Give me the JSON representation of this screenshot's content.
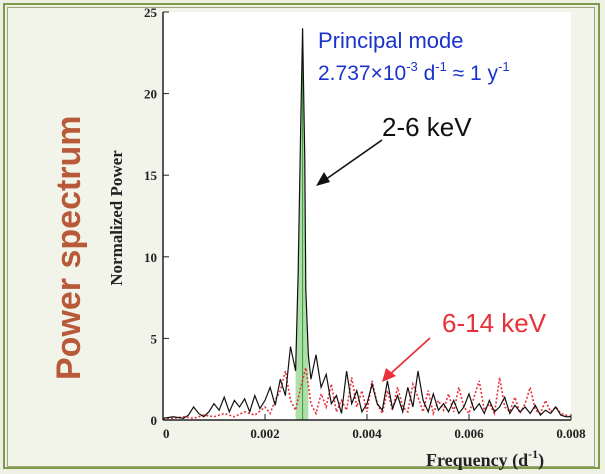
{
  "page": {
    "side_title": "Power spectrum",
    "colors": {
      "background": "#eef0e4",
      "frame": "#7f9a4a",
      "side_title": "#b85a3a",
      "blue_text": "#1a33cc",
      "red": "#e8313a",
      "green_fill": "#9fd99a"
    }
  },
  "chart_data": {
    "type": "line",
    "xlabel": "Frequency (d",
    "xlabel_sup": "-1",
    "xlabel_close": ")",
    "ylabel": "Normalized Power",
    "xlim": [
      0,
      0.008
    ],
    "ylim": [
      0,
      25
    ],
    "x_ticks": [
      "0",
      "0.002",
      "0.004",
      "0.006",
      "0.008"
    ],
    "x_tick_values": [
      0,
      0.002,
      0.004,
      0.006,
      0.008
    ],
    "y_ticks": [
      "0",
      "5",
      "10",
      "15",
      "20",
      "25"
    ],
    "y_tick_values": [
      0,
      5,
      10,
      15,
      20,
      25
    ],
    "annotations": {
      "principal_title": "Principal mode",
      "principal_base": "2.737×10",
      "principal_exp1": "-3",
      "principal_mid": " d",
      "principal_exp2": "-1",
      "principal_tail": " ≈ 1 y",
      "principal_exp3": "-1",
      "label_low": "2-6 keV",
      "label_high": "6-14 keV"
    },
    "principal_peak": {
      "x": 0.002737,
      "y": 24
    },
    "series": [
      {
        "name": "2-6 keV",
        "style": "solid",
        "color": "#111111",
        "x": [
          0,
          0.0002,
          0.0004,
          0.0005,
          0.0006,
          0.0007,
          0.0008,
          0.0009,
          0.001,
          0.0011,
          0.0012,
          0.0013,
          0.0014,
          0.0015,
          0.0016,
          0.0017,
          0.0018,
          0.0019,
          0.002,
          0.0021,
          0.0022,
          0.0023,
          0.0024,
          0.0025,
          0.0026,
          0.00265,
          0.0027,
          0.002737,
          0.00278,
          0.0028,
          0.00285,
          0.0029,
          0.003,
          0.0031,
          0.0032,
          0.0033,
          0.0034,
          0.0035,
          0.0036,
          0.0037,
          0.0038,
          0.0039,
          0.004,
          0.0041,
          0.0042,
          0.0043,
          0.0044,
          0.0045,
          0.0046,
          0.0047,
          0.0048,
          0.0049,
          0.005,
          0.0051,
          0.0052,
          0.0053,
          0.0054,
          0.0055,
          0.0056,
          0.0057,
          0.0058,
          0.0059,
          0.006,
          0.0061,
          0.0062,
          0.0063,
          0.0064,
          0.0065,
          0.0066,
          0.0067,
          0.0068,
          0.0069,
          0.007,
          0.0071,
          0.0072,
          0.0073,
          0.0074,
          0.0075,
          0.0076,
          0.0077,
          0.0078,
          0.0079,
          0.008
        ],
        "y": [
          0.1,
          0.2,
          0.1,
          0.3,
          0.8,
          0.4,
          0.2,
          0.5,
          1.0,
          0.6,
          1.4,
          0.5,
          1.2,
          0.8,
          1.3,
          0.5,
          1.5,
          0.7,
          1.2,
          2.0,
          0.9,
          2.5,
          1.5,
          4.5,
          3.0,
          9.0,
          18.0,
          24.0,
          16.0,
          8.0,
          4.0,
          2.5,
          4.0,
          2.0,
          2.8,
          1.0,
          1.5,
          0.4,
          3.0,
          1.0,
          1.8,
          0.5,
          1.0,
          2.2,
          1.0,
          0.6,
          2.4,
          0.7,
          1.5,
          0.5,
          2.0,
          0.8,
          3.0,
          1.2,
          0.5,
          1.6,
          0.6,
          1.0,
          0.5,
          1.2,
          0.4,
          0.8,
          1.6,
          0.6,
          1.0,
          0.4,
          1.2,
          0.5,
          0.8,
          1.4,
          0.4,
          0.9,
          0.5,
          0.8,
          0.4,
          0.9,
          0.3,
          0.6,
          0.4,
          0.8,
          0.3,
          0.2,
          0.2
        ]
      },
      {
        "name": "6-14 keV",
        "style": "dotted",
        "color": "#e8313a",
        "x": [
          0,
          0.0002,
          0.0004,
          0.0006,
          0.0008,
          0.001,
          0.0012,
          0.0014,
          0.0016,
          0.0018,
          0.002,
          0.0021,
          0.0022,
          0.0023,
          0.0024,
          0.0025,
          0.0026,
          0.0027,
          0.0028,
          0.0029,
          0.003,
          0.0031,
          0.0032,
          0.0033,
          0.0034,
          0.0035,
          0.0036,
          0.0037,
          0.0038,
          0.0039,
          0.004,
          0.0041,
          0.0042,
          0.0043,
          0.0044,
          0.0045,
          0.0046,
          0.0047,
          0.0048,
          0.0049,
          0.005,
          0.0051,
          0.0052,
          0.0053,
          0.0054,
          0.0055,
          0.0056,
          0.0057,
          0.0058,
          0.0059,
          0.006,
          0.0061,
          0.0062,
          0.0063,
          0.0064,
          0.0065,
          0.0066,
          0.0067,
          0.0068,
          0.0069,
          0.007,
          0.0071,
          0.0072,
          0.0073,
          0.0074,
          0.0075,
          0.0076,
          0.0077,
          0.0078,
          0.0079,
          0.008
        ],
        "y": [
          0.1,
          0.1,
          0.2,
          0.1,
          0.3,
          0.2,
          0.4,
          0.2,
          0.5,
          0.3,
          0.8,
          0.4,
          1.2,
          1.8,
          3.0,
          1.2,
          0.6,
          2.0,
          3.2,
          1.0,
          0.4,
          1.6,
          0.8,
          2.2,
          0.5,
          1.2,
          0.6,
          2.6,
          0.8,
          1.8,
          0.5,
          2.4,
          1.0,
          0.4,
          1.8,
          0.6,
          2.0,
          0.8,
          0.5,
          2.2,
          1.4,
          0.5,
          1.8,
          0.4,
          1.2,
          0.6,
          1.6,
          0.5,
          2.0,
          0.8,
          0.4,
          1.4,
          2.4,
          0.6,
          1.0,
          0.4,
          2.6,
          0.8,
          0.5,
          1.4,
          0.4,
          1.0,
          2.0,
          0.6,
          0.4,
          1.2,
          0.5,
          0.8,
          0.4,
          0.3,
          0.2
        ]
      }
    ]
  }
}
